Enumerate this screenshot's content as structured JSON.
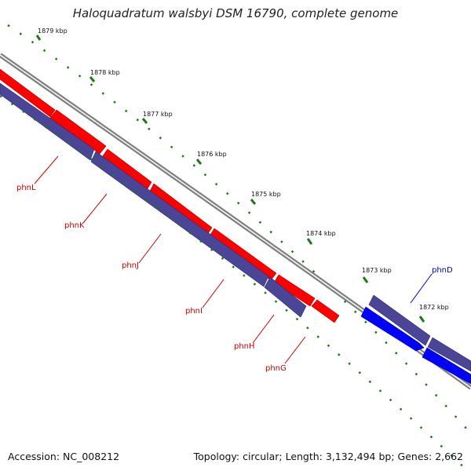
{
  "title": "Haloquadratum walsbyi DSM 16790, complete genome",
  "footer": {
    "accession": "Accession: NC_008212",
    "summary": "Topology: circular; Length: 3,132,494 bp; Genes: 2,662"
  },
  "scale_ticks": [
    "1879 kbp",
    "1878 kbp",
    "1877 kbp",
    "1876 kbp",
    "1875 kbp",
    "1874 kbp",
    "1873 kbp",
    "1872 kbp"
  ],
  "genes": [
    {
      "name": "phnL",
      "strand": "reverse"
    },
    {
      "name": "phnK",
      "strand": "reverse"
    },
    {
      "name": "phnJ",
      "strand": "reverse"
    },
    {
      "name": "phnI",
      "strand": "reverse"
    },
    {
      "name": "phnH",
      "strand": "reverse"
    },
    {
      "name": "phnG",
      "strand": "reverse"
    },
    {
      "name": "phnD",
      "strand": "forward"
    }
  ],
  "colors": {
    "cds_red": "#ff0000",
    "cds_blue": "#0000ff",
    "gene_track": "#4b4598",
    "backbone": "#808080",
    "scale_green": "#1a7a1a",
    "label_red": "#cc0000",
    "label_blue": "#0000cc"
  }
}
